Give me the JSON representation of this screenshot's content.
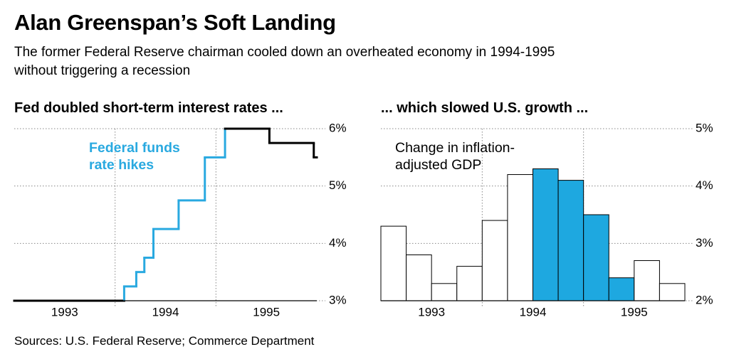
{
  "header": {
    "title": "Alan Greenspan’s Soft Landing",
    "subtitle": "The former Federal Reserve chairman cooled down an overheated economy in 1994-1995 without triggering a recession"
  },
  "chart_data": [
    {
      "type": "step",
      "title": "Fed doubled short-term interest rates ...",
      "series": [
        {
          "color": "#000000",
          "x": [
            1993.0
          ],
          "values": [
            3
          ]
        },
        {
          "name": "Federal funds rate hikes",
          "color": "#29a9e0",
          "x": [
            1994.09,
            1994.21,
            1994.29,
            1994.38,
            1994.63,
            1994.89,
            1995.09
          ],
          "values": [
            3.25,
            3.5,
            3.75,
            4.25,
            4.75,
            5.5,
            6
          ]
        },
        {
          "color": "#000000",
          "x": [
            1995.09,
            1995.53,
            1995.97
          ],
          "values": [
            6,
            5.75,
            5.5
          ]
        }
      ],
      "xlim": [
        1993,
        1996
      ],
      "xticks": [
        {
          "value": 1993.5,
          "label": "1993"
        },
        {
          "value": 1994.5,
          "label": "1994"
        },
        {
          "value": 1995.5,
          "label": "1995"
        }
      ],
      "ylim": [
        3,
        6
      ],
      "yticks": [
        {
          "value": 3,
          "label": "3%"
        },
        {
          "value": 4,
          "label": "4%"
        },
        {
          "value": 5,
          "label": "5%"
        },
        {
          "value": 6,
          "label": "6%"
        }
      ],
      "grid": true
    },
    {
      "type": "histogram",
      "title": "... which slowed U.S. growth ...",
      "annotation": "Change in inflation-adjusted GDP",
      "bins": [
        1993,
        1993.25,
        1993.5,
        1993.75,
        1994,
        1994.25,
        1994.5,
        1994.75,
        1995,
        1995.25,
        1995.5,
        1995.75,
        1996
      ],
      "values": [
        3.3,
        2.8,
        2.3,
        2.6,
        3.4,
        4.2,
        4.3,
        4.1,
        3.5,
        2.4,
        2.7,
        2.3
      ],
      "colors": [
        "#ffffff",
        "#ffffff",
        "#ffffff",
        "#ffffff",
        "#ffffff",
        "#ffffff",
        "#1ea8e0",
        "#1ea8e0",
        "#1ea8e0",
        "#1ea8e0",
        "#ffffff",
        "#ffffff"
      ],
      "xlim": [
        1993,
        1996
      ],
      "xticks": [
        {
          "value": 1993.5,
          "label": "1993"
        },
        {
          "value": 1994.5,
          "label": "1994"
        },
        {
          "value": 1995.5,
          "label": "1995"
        }
      ],
      "ylim": [
        2,
        5
      ],
      "yticks": [
        {
          "value": 2,
          "label": "2%"
        },
        {
          "value": 3,
          "label": "3%"
        },
        {
          "value": 4,
          "label": "4%"
        },
        {
          "value": 5,
          "label": "5%"
        }
      ],
      "grid": true
    }
  ],
  "source": "Sources: U.S. Federal Reserve; Commerce Department"
}
